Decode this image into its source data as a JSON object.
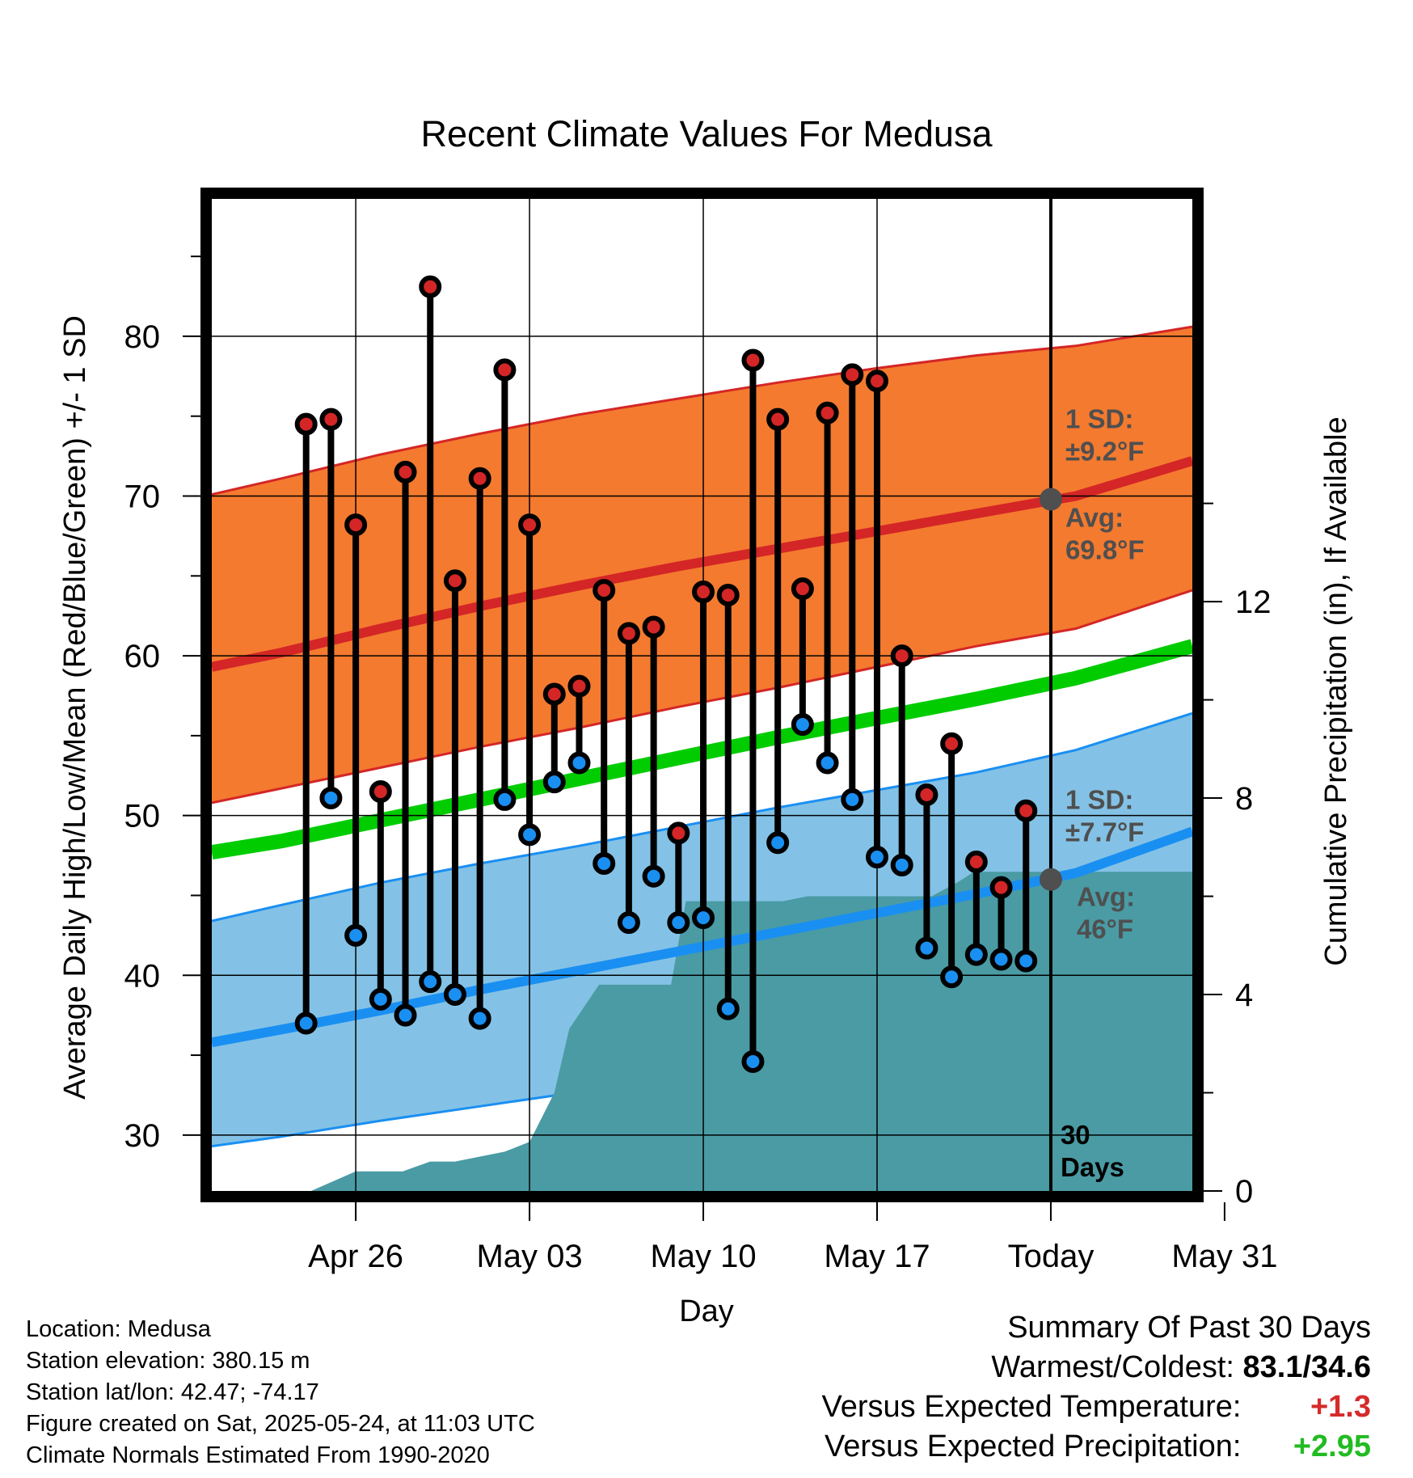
{
  "chart_data": {
    "type": "line",
    "title": "Recent Climate Values For Medusa",
    "xlabel": "Day",
    "ylabel_left": "Average Daily High/Low/Mean (Red/Blue/Green) +/- 1 SD",
    "ylabel_right": "Cumulative Precipitation (in), If Available",
    "ylim": [
      26.5,
      88.6
    ],
    "y2lim": [
      0,
      20.2
    ],
    "xlim": [
      -2.8,
      36.7
    ],
    "grid": true,
    "x_ticks": [
      {
        "day": 3,
        "label": "Apr 26"
      },
      {
        "day": 10,
        "label": "May 03"
      },
      {
        "day": 17,
        "label": "May 10"
      },
      {
        "day": 24,
        "label": "May 17"
      },
      {
        "day": 31,
        "label": "Today"
      },
      {
        "day": 38,
        "label": "May 31"
      }
    ],
    "y_ticks": [
      30,
      40,
      50,
      60,
      70,
      80
    ],
    "y2_ticks": [
      0,
      4,
      8,
      12
    ],
    "days": [
      1,
      2,
      3,
      4,
      5,
      6,
      7,
      8,
      9,
      10,
      11,
      12,
      13,
      14,
      15,
      16,
      17,
      18,
      19,
      20,
      21,
      22,
      23,
      24,
      25,
      26,
      27,
      28,
      29,
      30
    ],
    "observed_high": [
      74.5,
      74.8,
      68.2,
      51.5,
      71.5,
      83.1,
      64.7,
      71.1,
      77.9,
      68.2,
      57.6,
      58.1,
      64.1,
      61.4,
      61.8,
      48.9,
      64.0,
      63.8,
      78.5,
      74.8,
      64.2,
      75.2,
      77.6,
      77.2,
      60.0,
      51.3,
      54.5,
      47.1,
      45.5,
      50.3
    ],
    "observed_low": [
      37.0,
      51.1,
      42.5,
      38.5,
      37.5,
      39.6,
      38.8,
      37.3,
      51.0,
      48.8,
      52.1,
      53.3,
      47.0,
      43.3,
      46.2,
      43.3,
      43.6,
      37.9,
      34.6,
      48.3,
      55.7,
      53.3,
      51.0,
      47.4,
      46.9,
      41.7,
      39.9,
      41.3,
      41.0,
      40.9
    ],
    "normal_x": [
      -2.8,
      0,
      4,
      8,
      12,
      16,
      20,
      24,
      28,
      32,
      36.7
    ],
    "normal_high": [
      59.3,
      60.2,
      61.7,
      63.1,
      64.4,
      65.6,
      66.7,
      67.8,
      68.9,
      70.0,
      72.2
    ],
    "normal_high_upper": [
      70.1,
      71.1,
      72.6,
      73.9,
      75.1,
      76.1,
      77.1,
      78.0,
      78.8,
      79.4,
      80.6
    ],
    "normal_high_lower": [
      50.8,
      51.7,
      53.0,
      54.3,
      55.5,
      56.8,
      58.0,
      59.3,
      60.6,
      61.7,
      64.1
    ],
    "normal_low": [
      35.8,
      36.6,
      37.8,
      39.1,
      40.3,
      41.5,
      42.7,
      43.9,
      45.1,
      46.4,
      49.0
    ],
    "normal_low_upper": [
      43.4,
      44.4,
      45.8,
      47.0,
      48.1,
      49.3,
      50.5,
      51.6,
      52.7,
      54.1,
      56.4
    ],
    "normal_low_lower": [
      29.3,
      29.9,
      30.9,
      31.8,
      32.7,
      33.6,
      34.5,
      35.4,
      36.5,
      37.7,
      40.5
    ],
    "normal_mean": [
      47.7,
      48.4,
      49.7,
      51.0,
      52.3,
      53.6,
      54.9,
      56.1,
      57.3,
      58.6,
      60.6
    ],
    "precip_x": [
      -2.8,
      0.4,
      1.2,
      3.0,
      4.9,
      6.0,
      7.0,
      9.0,
      10.0,
      11.0,
      11.6,
      12.8,
      14.0,
      15.7,
      16.3,
      18.0,
      20.2,
      21.2,
      23.0,
      26.2,
      27.3,
      27.9,
      28.9,
      30.0,
      31.0,
      36.7
    ],
    "precip": [
      0,
      0,
      0,
      0.4,
      0.4,
      0.6,
      0.6,
      0.8,
      1.0,
      2.0,
      3.3,
      4.2,
      4.2,
      4.2,
      5.9,
      5.9,
      5.9,
      6.0,
      6.0,
      6.0,
      6.3,
      6.5,
      6.5,
      6.5,
      6.5,
      6.5
    ],
    "annotations": {
      "high_sd": [
        "1 SD:",
        "±9.2°F"
      ],
      "high_avg": [
        "Avg:",
        "69.8°F"
      ],
      "low_sd": [
        "1 SD:",
        "±7.7°F"
      ],
      "low_avg": [
        "Avg:",
        "46°F"
      ],
      "today_note": [
        "30",
        "Days"
      ]
    },
    "today_day": 31,
    "today_high_avg": 69.8,
    "today_low_avg": 46.0,
    "colors": {
      "high_band": "#f47a2f",
      "high_line": "#d42626",
      "low_band": "#83c2e6",
      "low_line": "#1a8ff2",
      "mean_line": "#00cc00",
      "precip": "#4a9ba4",
      "high_marker": "#d42626",
      "low_marker": "#1a8ff2",
      "annotation": "#4f4f4f"
    }
  },
  "station": {
    "location": "Location: Medusa",
    "elevation": "Station elevation: 380.15 m",
    "latlon": "Station lat/lon: 42.47; -74.17",
    "created": "Figure created on Sat, 2025-05-24, at 11:03 UTC",
    "normals": "Climate Normals Estimated From 1990-2020"
  },
  "summary": {
    "heading": "Summary Of Past 30 Days",
    "warm_cold_label": "Warmest/Coldest:",
    "warm_cold_value": "83.1/34.6",
    "temp_label": "Versus Expected Temperature:",
    "temp_value": "+1.3",
    "precip_label": "Versus Expected Precipitation:",
    "precip_value": "+2.95"
  }
}
